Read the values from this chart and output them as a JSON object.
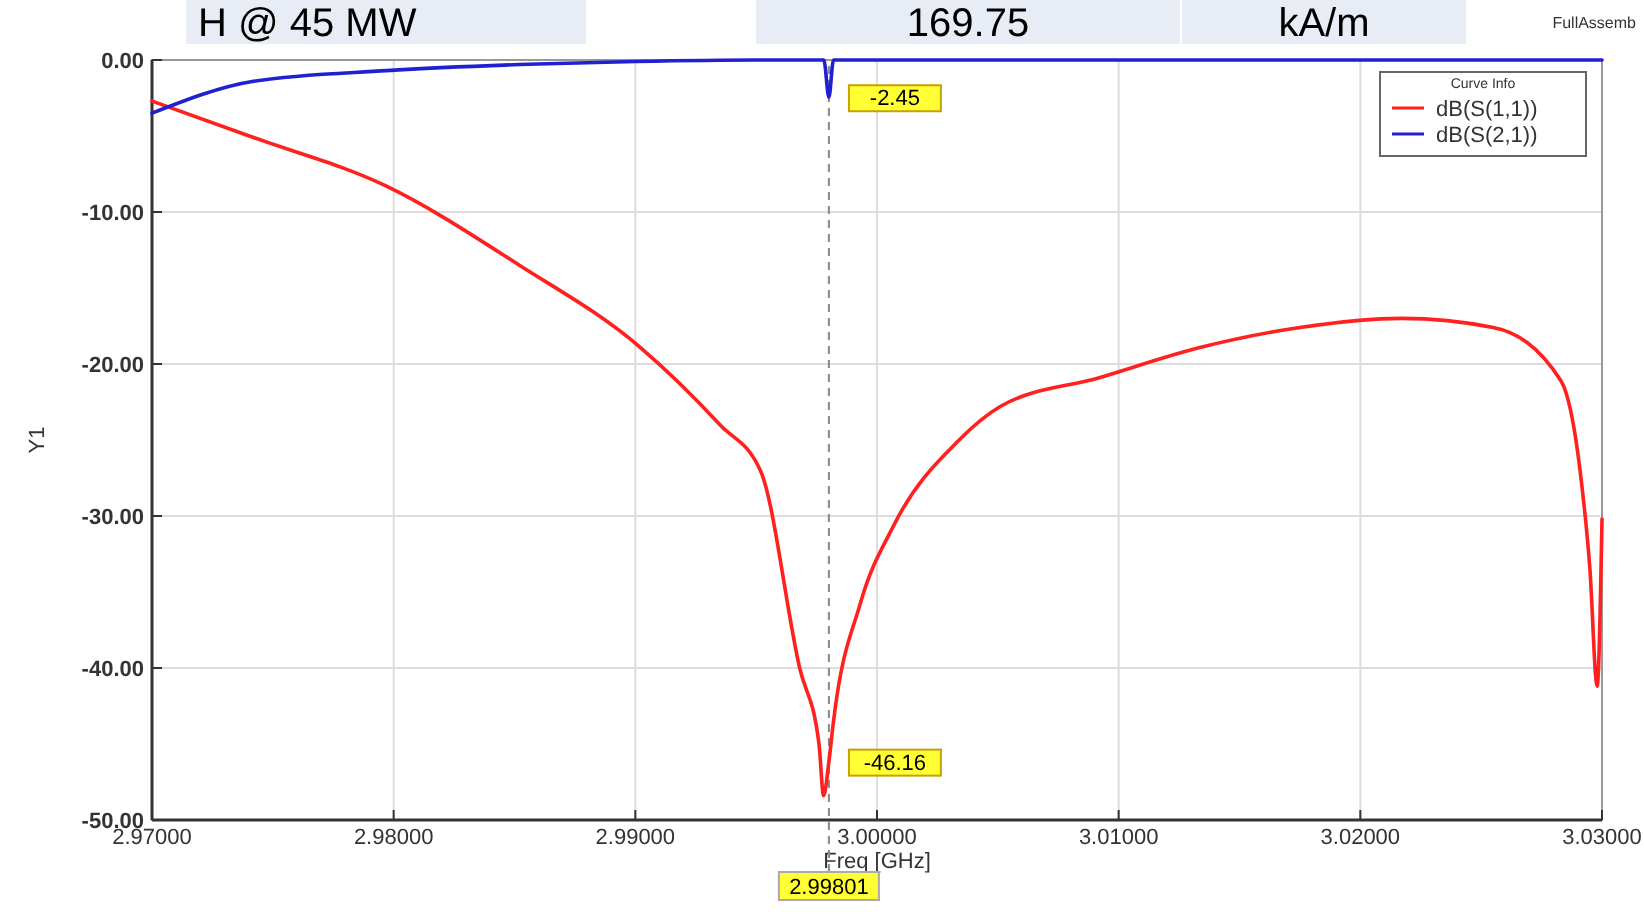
{
  "chart_data": {
    "type": "line",
    "xlabel": "Freq [GHz]",
    "ylabel": "Y1",
    "legend_title": "Curve Info",
    "legend": "top right",
    "grid": true,
    "line_style": "solid",
    "marker": "none",
    "xlim": [
      2.97,
      3.03
    ],
    "ylim": [
      -50,
      0
    ],
    "xticks": [
      {
        "value": 2.97,
        "label": "2.97000"
      },
      {
        "value": 2.98,
        "label": "2.98000"
      },
      {
        "value": 2.99,
        "label": "2.99000"
      },
      {
        "value": 3.0,
        "label": "3.00000"
      },
      {
        "value": 3.01,
        "label": "3.01000"
      },
      {
        "value": 3.02,
        "label": "3.02000"
      },
      {
        "value": 3.03,
        "label": "3.03000"
      }
    ],
    "yticks": [
      {
        "value": 0,
        "label": "0.00"
      },
      {
        "value": -10,
        "label": "-10.00"
      },
      {
        "value": -20,
        "label": "-20.00"
      },
      {
        "value": -30,
        "label": "-30.00"
      },
      {
        "value": -40,
        "label": "-40.00"
      },
      {
        "value": -50,
        "label": "-50.00"
      }
    ],
    "series": [
      {
        "name": "dB(S(1,1))",
        "color": "#ff2020",
        "x": [
          2.97,
          2.9742,
          2.9797,
          2.9852,
          2.9902,
          2.9935,
          2.9952,
          2.9968,
          2.9976,
          2.99779,
          2.99801,
          2.9982,
          2.9993,
          3.0007,
          3.0034,
          3.0051,
          3.0092,
          3.0134,
          3.0175,
          3.0217,
          3.0255,
          3.0283,
          3.0291,
          3.0295,
          3.0298,
          3.03
        ],
        "values": [
          -2.7,
          -5.1,
          -8.3,
          -13.5,
          -18.9,
          -24,
          -27.1,
          -40,
          -45,
          -48.4,
          -46.16,
          -43.5,
          -35.8,
          -30.6,
          -25,
          -22.8,
          -20.9,
          -18.9,
          -17.6,
          -17,
          -17.6,
          -21.1,
          -27.1,
          -33.5,
          -41.2,
          -30.2
        ]
      },
      {
        "name": "dB(S(2,1))",
        "color": "#2020d0",
        "x": [
          2.97,
          2.9742,
          2.9797,
          2.9852,
          2.99,
          2.995,
          2.9978,
          2.99801,
          2.9982,
          3.0,
          3.03
        ],
        "values": [
          -3.5,
          -1.4,
          -0.7,
          -0.3,
          -0.1,
          0,
          0,
          -2.45,
          0,
          0,
          0
        ]
      }
    ],
    "ref_lines": [
      {
        "axis": "x",
        "value": 2.99801,
        "label": "2.99801",
        "color": "#888888",
        "line_style": "dashed"
      }
    ],
    "annotations": [
      {
        "text": "-2.45",
        "x": 2.99801,
        "y": -2.45
      },
      {
        "text": "-46.16",
        "x": 2.99801,
        "y": -46.16
      },
      "H @ 45 MW",
      "169.75",
      "kA/m",
      "FullAssemb"
    ]
  }
}
